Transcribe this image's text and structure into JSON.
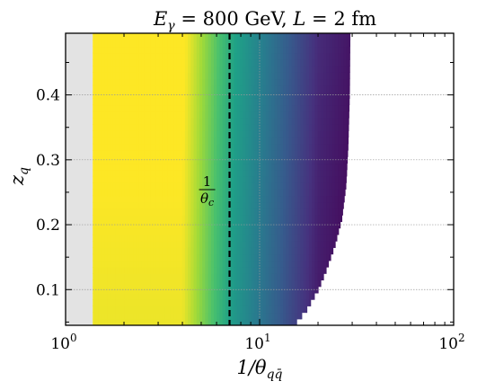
{
  "chart_data": {
    "type": "heatmap",
    "title_parts": {
      "lhs_main": "E",
      "lhs_sub": "γ",
      "eq": " = 800 GeV, ",
      "L_main": "L",
      "L_rest": " = 2 fm"
    },
    "title": "E_γ = 800 GeV, L = 2 fm",
    "xlabel_parts": {
      "main": "1/θ",
      "sub": "qq̄"
    },
    "xlabel": "1/θ_qq̄",
    "ylabel_parts": {
      "main": "z",
      "sub": "q"
    },
    "ylabel": "z_q",
    "x_scale": "log",
    "xlim": [
      1,
      100
    ],
    "ylim": [
      0.045,
      0.495
    ],
    "x_ticks": [
      {
        "value": 1,
        "base": "10",
        "exp": "0"
      },
      {
        "value": 10,
        "base": "10",
        "exp": "1"
      },
      {
        "value": 100,
        "base": "10",
        "exp": "2"
      }
    ],
    "y_ticks": [
      {
        "value": 0.1,
        "label": "0.1"
      },
      {
        "value": 0.2,
        "label": "0.2"
      },
      {
        "value": 0.3,
        "label": "0.3"
      },
      {
        "value": 0.4,
        "label": "0.4"
      }
    ],
    "grid": true,
    "colormap": "viridis",
    "colormap_stops": [
      "#440154",
      "#46327e",
      "#365c8d",
      "#277f8e",
      "#1fa187",
      "#4ac16d",
      "#a0da39",
      "#fde725"
    ],
    "excluded_region": {
      "x_max": 1.38,
      "color": "#e3e3e3"
    },
    "field": {
      "x_min": 1.38,
      "yellow_until": 4.0,
      "green_at": 7.5,
      "dark_at": 20.0,
      "boundary": [
        {
          "z": 0.05,
          "x_max": 15.5
        },
        {
          "z": 0.07,
          "x_max": 17.5
        },
        {
          "z": 0.1,
          "x_max": 20.0
        },
        {
          "z": 0.13,
          "x_max": 22.0
        },
        {
          "z": 0.17,
          "x_max": 24.5
        },
        {
          "z": 0.21,
          "x_max": 26.5
        },
        {
          "z": 0.26,
          "x_max": 27.8
        },
        {
          "z": 0.32,
          "x_max": 28.5
        },
        {
          "z": 0.4,
          "x_max": 29.0
        },
        {
          "z": 0.5,
          "x_max": 29.2
        }
      ]
    },
    "critical_line": {
      "x": 7.0,
      "style": "dashed",
      "color": "#000000"
    },
    "annotation": {
      "numerator": "1",
      "denominator_main": "θ",
      "denominator_sub": "c"
    }
  }
}
